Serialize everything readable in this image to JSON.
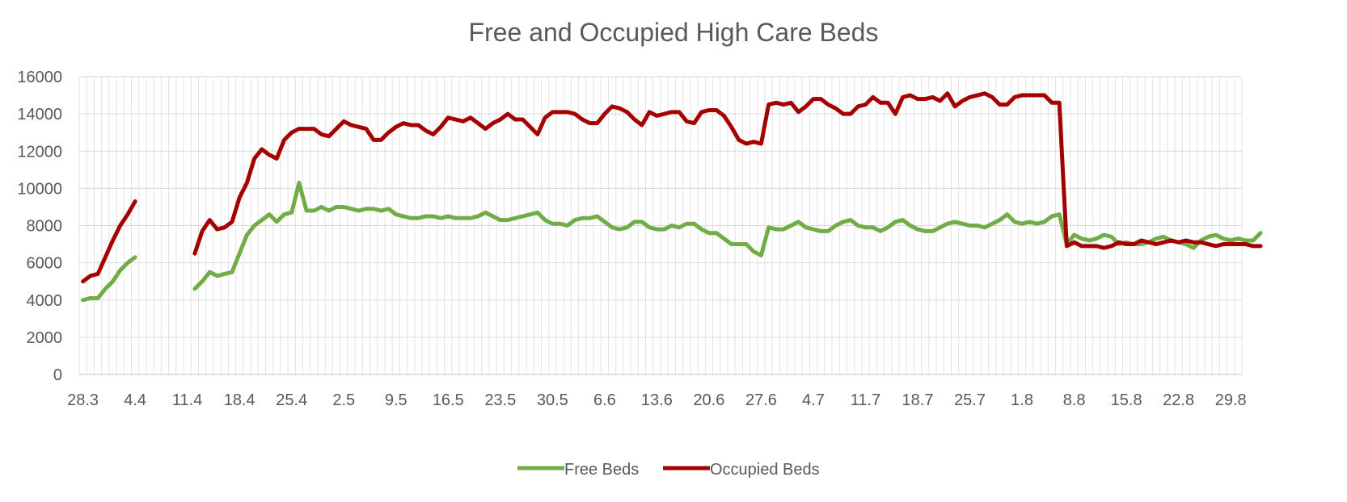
{
  "chart_data": {
    "type": "line",
    "title": "Free and Occupied High Care Beds",
    "xlabel": "",
    "ylabel": "",
    "ylim": [
      0,
      16000
    ],
    "y_ticks": [
      "0",
      "2000",
      "4000",
      "6000",
      "8000",
      "10000",
      "12000",
      "14000",
      "16000"
    ],
    "x_tick_labels": [
      "28.3",
      "4.4",
      "11.4",
      "18.4",
      "25.4",
      "2.5",
      "9.5",
      "16.5",
      "23.5",
      "30.5",
      "6.6",
      "13.6",
      "20.6",
      "27.6",
      "4.7",
      "11.7",
      "18.7",
      "25.7",
      "1.8",
      "8.8",
      "15.8",
      "22.8",
      "29.8"
    ],
    "x_tick_interval_days": 7,
    "n_days": 156,
    "grid": true,
    "legend": "bottom",
    "series": [
      {
        "name": "Free Beds",
        "color": "#70ad47",
        "values": [
          4000,
          4100,
          4100,
          4600,
          5000,
          5600,
          6000,
          6300,
          null,
          null,
          null,
          null,
          null,
          null,
          null,
          4600,
          5000,
          5500,
          5300,
          5400,
          5500,
          6500,
          7500,
          8000,
          8300,
          8600,
          8200,
          8600,
          8700,
          10300,
          8800,
          8800,
          9000,
          8800,
          9000,
          9000,
          8900,
          8800,
          8900,
          8900,
          8800,
          8900,
          8600,
          8500,
          8400,
          8400,
          8500,
          8500,
          8400,
          8500,
          8400,
          8400,
          8400,
          8500,
          8700,
          8500,
          8300,
          8300,
          8400,
          8500,
          8600,
          8700,
          8300,
          8100,
          8100,
          8000,
          8300,
          8400,
          8400,
          8500,
          8200,
          7900,
          7800,
          7900,
          8200,
          8200,
          7900,
          7800,
          7800,
          8000,
          7900,
          8100,
          8100,
          7800,
          7600,
          7600,
          7300,
          7000,
          7000,
          7000,
          6600,
          6400,
          7900,
          7800,
          7800,
          8000,
          8200,
          7900,
          7800,
          7700,
          7700,
          8000,
          8200,
          8300,
          8000,
          7900,
          7900,
          7700,
          7900,
          8200,
          8300,
          8000,
          7800,
          7700,
          7700,
          7900,
          8100,
          8200,
          8100,
          8000,
          8000,
          7900,
          8100,
          8300,
          8600,
          8200,
          8100,
          8200,
          8100,
          8200,
          8500,
          8600,
          7000,
          7500,
          7300,
          7200,
          7300,
          7500,
          7400,
          7000,
          7100,
          7000,
          7000,
          7100,
          7300,
          7400,
          7200,
          7100,
          7000,
          6800,
          7200,
          7400,
          7500,
          7300,
          7200,
          7300,
          7200,
          7200,
          7600
        ]
      },
      {
        "name": "Occupied Beds",
        "color": "#a50000",
        "values": [
          5000,
          5300,
          5400,
          6300,
          7200,
          8000,
          8600,
          9300,
          null,
          null,
          null,
          null,
          null,
          null,
          null,
          6500,
          7700,
          8300,
          7800,
          7900,
          8200,
          9500,
          10300,
          11600,
          12100,
          11800,
          11600,
          12600,
          13000,
          13200,
          13200,
          13200,
          12900,
          12800,
          13200,
          13600,
          13400,
          13300,
          13200,
          12600,
          12600,
          13000,
          13300,
          13500,
          13400,
          13400,
          13100,
          12900,
          13300,
          13800,
          13700,
          13600,
          13800,
          13500,
          13200,
          13500,
          13700,
          14000,
          13700,
          13700,
          13300,
          12900,
          13800,
          14100,
          14100,
          14100,
          14000,
          13700,
          13500,
          13500,
          14000,
          14400,
          14300,
          14100,
          13700,
          13400,
          14100,
          13900,
          14000,
          14100,
          14100,
          13600,
          13500,
          14100,
          14200,
          14200,
          13900,
          13300,
          12600,
          12400,
          12500,
          12400,
          14500,
          14600,
          14500,
          14600,
          14100,
          14400,
          14800,
          14800,
          14500,
          14300,
          14000,
          14000,
          14400,
          14500,
          14900,
          14600,
          14600,
          14000,
          14900,
          15000,
          14800,
          14800,
          14900,
          14700,
          15100,
          14400,
          14700,
          14900,
          15000,
          15100,
          14900,
          14500,
          14500,
          14900,
          15000,
          15000,
          15000,
          15000,
          14600,
          14600,
          6900,
          7100,
          6900,
          6900,
          6900,
          6800,
          6900,
          7100,
          7000,
          7000,
          7200,
          7100,
          7000,
          7100,
          7200,
          7100,
          7200,
          7100,
          7100,
          7000,
          6900,
          7000,
          7000,
          7000,
          7000,
          6900,
          6900
        ]
      }
    ]
  }
}
